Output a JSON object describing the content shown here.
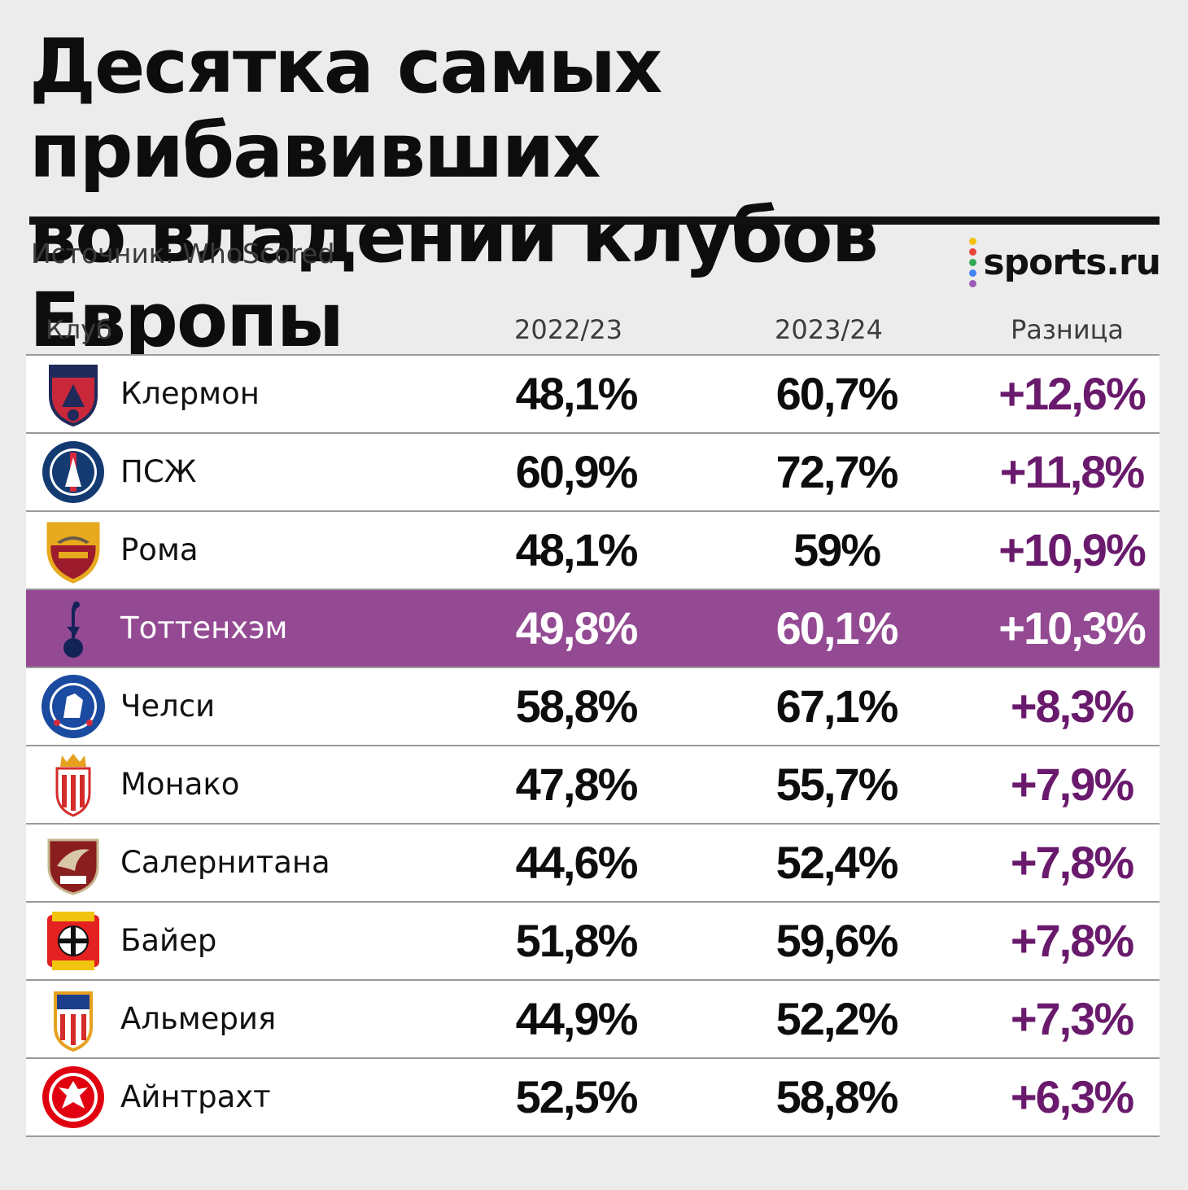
{
  "title_line1": "Десятка самых прибавивших",
  "title_line2": "во владении клубов Европы",
  "source": "Источник: WhoScored",
  "logo": {
    "text": "sports.ru",
    "dot_colors": [
      "#f4c20d",
      "#e8453c",
      "#34a853",
      "#4285f4",
      "#9b59b6"
    ]
  },
  "columns": {
    "club": "Клуб",
    "season1": "2022/23",
    "season2": "2023/24",
    "diff": "Разница"
  },
  "colors": {
    "highlight_row": "#944a93",
    "diff_text": "#6a1a6c"
  },
  "chart_data": {
    "type": "table",
    "title": "Десятка самых прибавивших во владении клубов Европы",
    "source": "Источник: WhoScored",
    "columns": [
      "Клуб",
      "2022/23",
      "2023/24",
      "Разница"
    ],
    "highlighted_row": 3,
    "rows": [
      {
        "club": "Клермон",
        "logo": "clermont-crest",
        "s1": "48,1%",
        "s2": "60,7%",
        "diff": "+12,6%"
      },
      {
        "club": "ПСЖ",
        "logo": "psg-crest",
        "s1": "60,9%",
        "s2": "72,7%",
        "diff": "+11,8%"
      },
      {
        "club": "Рома",
        "logo": "roma-crest",
        "s1": "48,1%",
        "s2": "59%",
        "diff": "+10,9%"
      },
      {
        "club": "Тоттенхэм",
        "logo": "tottenham-crest",
        "s1": "49,8%",
        "s2": "60,1%",
        "diff": "+10,3%"
      },
      {
        "club": "Челси",
        "logo": "chelsea-crest",
        "s1": "58,8%",
        "s2": "67,1%",
        "diff": "+8,3%"
      },
      {
        "club": "Монако",
        "logo": "monaco-crest",
        "s1": "47,8%",
        "s2": "55,7%",
        "diff": "+7,9%"
      },
      {
        "club": "Салернитана",
        "logo": "salernitana-crest",
        "s1": "44,6%",
        "s2": "52,4%",
        "diff": "+7,8%"
      },
      {
        "club": "Байер",
        "logo": "bayer-crest",
        "s1": "51,8%",
        "s2": "59,6%",
        "diff": "+7,8%"
      },
      {
        "club": "Альмерия",
        "logo": "almeria-crest",
        "s1": "44,9%",
        "s2": "52,2%",
        "diff": "+7,3%"
      },
      {
        "club": "Айнтрахт",
        "logo": "eintracht-crest",
        "s1": "52,5%",
        "s2": "58,8%",
        "diff": "+6,3%"
      }
    ]
  }
}
